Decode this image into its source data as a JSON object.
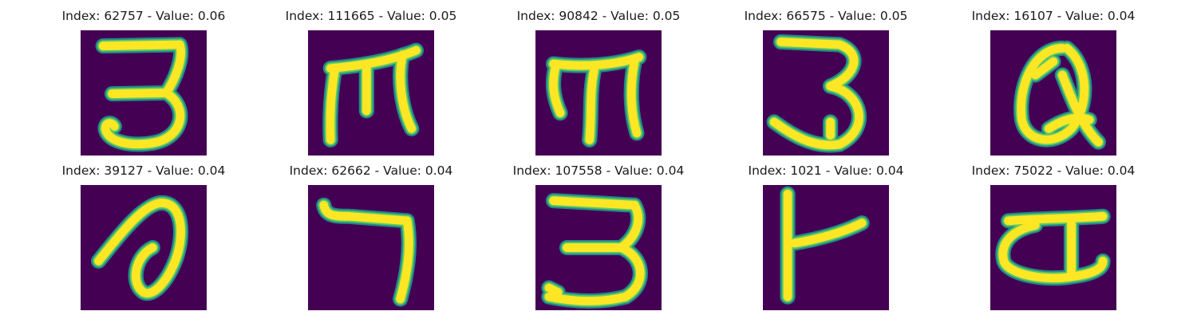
{
  "figure": {
    "background_color": "#440154",
    "stroke_color": "#fde725",
    "edge_color": "#21918c",
    "mid_color": "#5ec962",
    "panels": [
      {
        "title": "Index: 62757 - Value: 0.06",
        "glyph": "three-with-flat-top"
      },
      {
        "title": "Index: 111665 - Value: 0.05",
        "glyph": "m-like-character"
      },
      {
        "title": "Index: 90842 - Value: 0.05",
        "glyph": "m-like-character"
      },
      {
        "title": "Index: 66575 - Value: 0.05",
        "glyph": "three-with-flat-top"
      },
      {
        "title": "Index: 16107 - Value: 0.04",
        "glyph": "looped-a-character"
      },
      {
        "title": "Index: 39127 - Value: 0.04",
        "glyph": "looped-stroke-character"
      },
      {
        "title": "Index: 62662 - Value: 0.04",
        "glyph": "seven"
      },
      {
        "title": "Index: 107558 - Value: 0.04",
        "glyph": "three-with-flat-top"
      },
      {
        "title": "Index: 1021 - Value: 0.04",
        "glyph": "t-like-character"
      },
      {
        "title": "Index: 75022 - Value: 0.04",
        "glyph": "hindi-ka-like-character"
      }
    ]
  }
}
